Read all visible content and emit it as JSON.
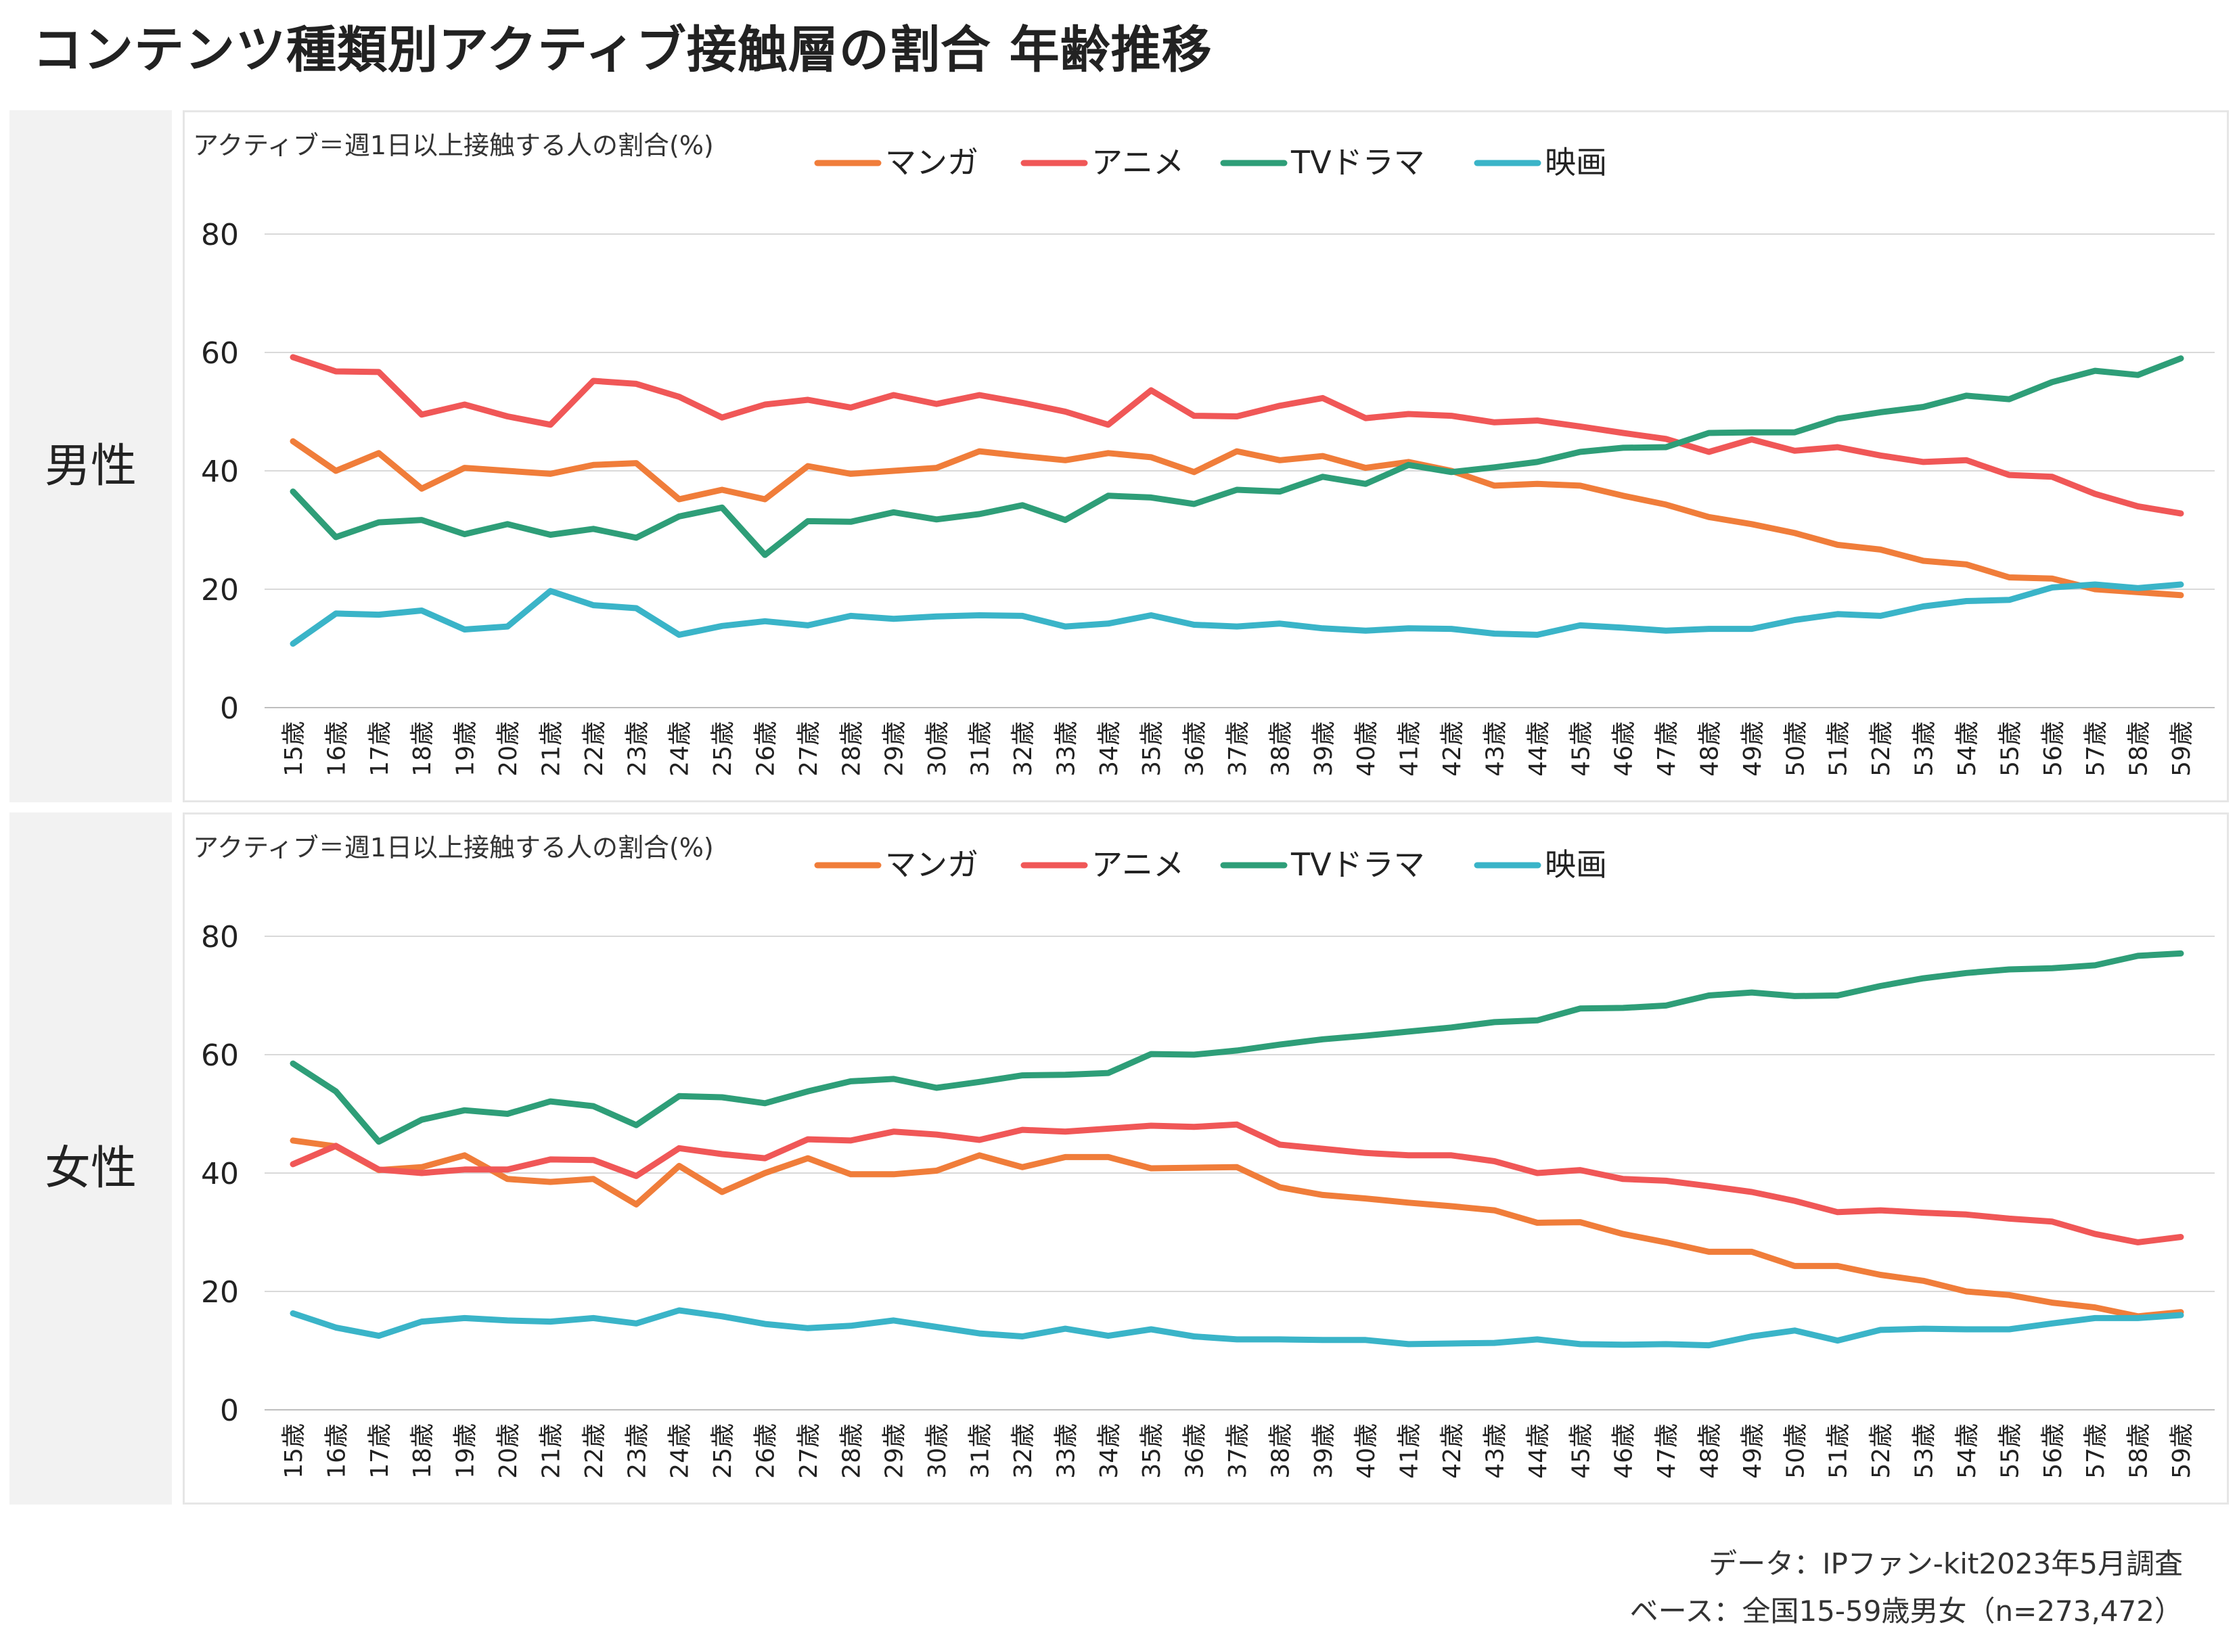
{
  "title": "コンテンツ種類別アクティブ接触層の割合 年齢推移",
  "footer": {
    "data_line": "データ：IPファン-kit2023年5月調査",
    "base_line": "ベース：全国15-59歳男女（n=273,472）"
  },
  "colors": {
    "manga": "#f07d3a",
    "anime": "#f05757",
    "tv": "#2e9e78",
    "movie": "#3ab4c8"
  },
  "chart_data": [
    {
      "type": "line",
      "panel_label": "男性",
      "note": "アクティブ＝週1日以上接触する人の割合(%)",
      "ylim": [
        0,
        80
      ],
      "yticks": [
        "0",
        "20",
        "40",
        "60",
        "80"
      ],
      "legend_position": "top",
      "grid": true,
      "categories": [
        "15歳",
        "16歳",
        "17歳",
        "18歳",
        "19歳",
        "20歳",
        "21歳",
        "22歳",
        "23歳",
        "24歳",
        "25歳",
        "26歳",
        "27歳",
        "28歳",
        "29歳",
        "30歳",
        "31歳",
        "32歳",
        "33歳",
        "34歳",
        "35歳",
        "36歳",
        "37歳",
        "38歳",
        "39歳",
        "40歳",
        "41歳",
        "42歳",
        "43歳",
        "44歳",
        "45歳",
        "46歳",
        "47歳",
        "48歳",
        "49歳",
        "50歳",
        "51歳",
        "52歳",
        "53歳",
        "54歳",
        "55歳",
        "56歳",
        "57歳",
        "58歳",
        "59歳"
      ],
      "series": [
        {
          "name": "マンガ",
          "color": "#f07d3a",
          "values": [
            45,
            40,
            43,
            37,
            40.5,
            40,
            39.5,
            41,
            41.3,
            35.2,
            36.8,
            35.2,
            40.8,
            39.5,
            40,
            40.5,
            43.3,
            42.5,
            41.8,
            43,
            42.3,
            39.8,
            43.3,
            41.8,
            42.5,
            40.5,
            41.5,
            40,
            37.5,
            37.8,
            37.5,
            35.8,
            34.3,
            32.2,
            31,
            29.5,
            27.5,
            26.7,
            24.8,
            24.2,
            22,
            21.8,
            20,
            19.5,
            19
          ]
        },
        {
          "name": "アニメ",
          "color": "#f05757",
          "values": [
            59.2,
            56.8,
            56.7,
            49.5,
            51.2,
            49.2,
            47.8,
            55.2,
            54.7,
            52.5,
            49,
            51.2,
            52,
            50.7,
            52.8,
            51.3,
            52.8,
            51.5,
            50,
            47.8,
            53.6,
            49.3,
            49.2,
            51,
            52.3,
            48.9,
            49.6,
            49.3,
            48.2,
            48.5,
            47.5,
            46.4,
            45.4,
            43.2,
            45.3,
            43.4,
            44,
            42.6,
            41.5,
            41.8,
            39.3,
            39,
            36.1,
            34,
            32.8
          ]
        },
        {
          "name": "TVドラマ",
          "color": "#2e9e78",
          "values": [
            36.5,
            28.8,
            31.3,
            31.7,
            29.3,
            31,
            29.2,
            30.2,
            28.7,
            32.3,
            33.8,
            25.8,
            31.5,
            31.4,
            33,
            31.8,
            32.7,
            34.2,
            31.7,
            35.8,
            35.5,
            34.4,
            36.8,
            36.5,
            39,
            37.8,
            41,
            39.8,
            40.6,
            41.5,
            43.2,
            43.9,
            44,
            46.4,
            46.5,
            46.5,
            48.8,
            49.9,
            50.8,
            52.7,
            52.1,
            55,
            56.9,
            56.2,
            59
          ]
        },
        {
          "name": "映画",
          "color": "#3ab4c8",
          "values": [
            10.8,
            15.9,
            15.7,
            16.4,
            13.2,
            13.7,
            19.7,
            17.3,
            16.8,
            12.3,
            13.8,
            14.6,
            13.9,
            15.5,
            15,
            15.4,
            15.6,
            15.5,
            13.7,
            14.2,
            15.6,
            14,
            13.7,
            14.2,
            13.4,
            13,
            13.4,
            13.3,
            12.5,
            12.3,
            13.9,
            13.5,
            13,
            13.3,
            13.3,
            14.8,
            15.8,
            15.5,
            17.1,
            18,
            18.2,
            20.3,
            20.8,
            20.2,
            20.8
          ]
        }
      ]
    },
    {
      "type": "line",
      "panel_label": "女性",
      "note": "アクティブ＝週1日以上接触する人の割合(%)",
      "ylim": [
        0,
        80
      ],
      "yticks": [
        "0",
        "20",
        "40",
        "60",
        "80"
      ],
      "legend_position": "top",
      "grid": true,
      "categories": [
        "15歳",
        "16歳",
        "17歳",
        "18歳",
        "19歳",
        "20歳",
        "21歳",
        "22歳",
        "23歳",
        "24歳",
        "25歳",
        "26歳",
        "27歳",
        "28歳",
        "29歳",
        "30歳",
        "31歳",
        "32歳",
        "33歳",
        "34歳",
        "35歳",
        "36歳",
        "37歳",
        "38歳",
        "39歳",
        "40歳",
        "41歳",
        "42歳",
        "43歳",
        "44歳",
        "45歳",
        "46歳",
        "47歳",
        "48歳",
        "49歳",
        "50歳",
        "51歳",
        "52歳",
        "53歳",
        "54歳",
        "55歳",
        "56歳",
        "57歳",
        "58歳",
        "59歳"
      ],
      "series": [
        {
          "name": "マンガ",
          "color": "#f07d3a",
          "values": [
            45.5,
            44.5,
            40.5,
            41,
            43,
            39,
            38.5,
            39,
            34.7,
            41.2,
            36.8,
            40,
            42.5,
            39.8,
            39.8,
            40.4,
            43,
            41,
            42.7,
            42.7,
            40.8,
            40.9,
            41,
            37.6,
            36.3,
            35.7,
            35,
            34.4,
            33.7,
            31.6,
            31.7,
            29.7,
            28.3,
            26.7,
            26.7,
            24.3,
            24.3,
            22.8,
            21.8,
            20,
            19.4,
            18.1,
            17.3,
            15.8,
            16.5
          ]
        },
        {
          "name": "アニメ",
          "color": "#f05757",
          "values": [
            41.5,
            44.6,
            40.6,
            40,
            40.6,
            40.6,
            42.3,
            42.2,
            39.5,
            44.2,
            43.2,
            42.5,
            45.7,
            45.5,
            47,
            46.5,
            45.6,
            47.3,
            47,
            47.5,
            48,
            47.8,
            48.2,
            44.8,
            44.1,
            43.4,
            43,
            43,
            42,
            40,
            40.5,
            39,
            38.7,
            37.8,
            36.8,
            35.3,
            33.4,
            33.7,
            33.3,
            33,
            32.3,
            31.8,
            29.7,
            28.3,
            29.2
          ]
        },
        {
          "name": "TVドラマ",
          "color": "#2e9e78",
          "values": [
            58.5,
            53.8,
            45.3,
            49,
            50.6,
            50,
            52.1,
            51.3,
            48.1,
            53,
            52.8,
            51.8,
            53.8,
            55.5,
            55.9,
            54.4,
            55.4,
            56.5,
            56.6,
            56.9,
            60.1,
            60,
            60.7,
            61.7,
            62.6,
            63.2,
            63.9,
            64.6,
            65.5,
            65.8,
            67.8,
            67.9,
            68.3,
            70,
            70.5,
            69.9,
            70,
            71.6,
            72.9,
            73.8,
            74.4,
            74.6,
            75.1,
            76.7,
            77.1
          ]
        },
        {
          "name": "映画",
          "color": "#3ab4c8",
          "values": [
            16.3,
            13.9,
            12.5,
            14.9,
            15.5,
            15.1,
            14.9,
            15.5,
            14.6,
            16.8,
            15.8,
            14.5,
            13.8,
            14.2,
            15.1,
            14,
            12.9,
            12.4,
            13.7,
            12.5,
            13.6,
            12.4,
            11.9,
            11.9,
            11.8,
            11.8,
            11.1,
            11.2,
            11.3,
            11.9,
            11.1,
            11,
            11.1,
            10.9,
            12.4,
            13.4,
            11.7,
            13.5,
            13.7,
            13.6,
            13.6,
            14.6,
            15.5,
            15.5,
            16
          ]
        }
      ]
    }
  ]
}
